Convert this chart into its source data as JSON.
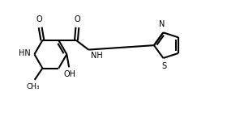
{
  "background": "#ffffff",
  "line_color": "#000000",
  "line_width": 1.5,
  "font_size": 7.0,
  "fig_width": 2.8,
  "fig_height": 1.4,
  "dpi": 100,
  "xlim": [
    0,
    10
  ],
  "ylim": [
    0,
    5
  ]
}
